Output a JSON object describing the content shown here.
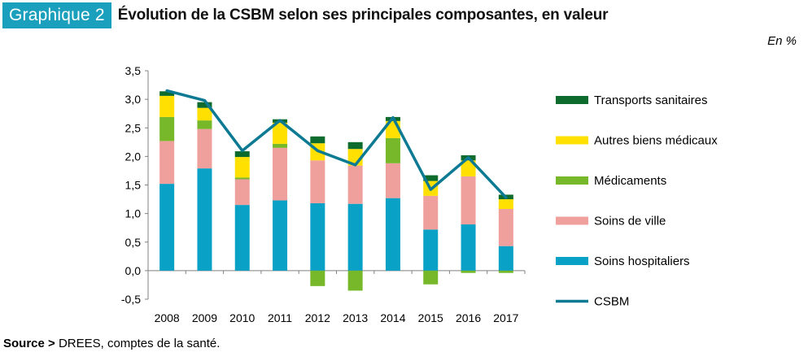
{
  "header": {
    "badge": "Graphique 2",
    "title": "Évolution de la CSBM selon ses principales composantes, en valeur",
    "unit": "En %"
  },
  "footer": {
    "source_label": "Source >",
    "source_text": " DREES, comptes de la santé."
  },
  "colors": {
    "transports": "#0e6b2e",
    "autres": "#ffe000",
    "medicaments": "#76b82a",
    "soins_ville": "#f0a09c",
    "soins_hosp": "#0aa1c6",
    "csbm": "#0c7a93",
    "axis": "#808080"
  },
  "chart_data": {
    "type": "bar",
    "stacked": true,
    "categories": [
      "2008",
      "2009",
      "2010",
      "2011",
      "2012",
      "2013",
      "2014",
      "2015",
      "2016",
      "2017"
    ],
    "ylim": [
      -0.5,
      3.5
    ],
    "yticks": [
      "3,5",
      "3,0",
      "2,5",
      "2,0",
      "1,5",
      "1,0",
      "0,5",
      "0,0",
      "-0,5"
    ],
    "ytick_values": [
      3.5,
      3.0,
      2.5,
      2.0,
      1.5,
      1.0,
      0.5,
      0.0,
      -0.5
    ],
    "series": [
      {
        "name": "Soins hospitaliers",
        "key": "soins_hosp",
        "values": [
          1.52,
          1.79,
          1.15,
          1.23,
          1.18,
          1.17,
          1.27,
          0.72,
          0.81,
          0.43
        ]
      },
      {
        "name": "Soins de ville",
        "key": "soins_ville",
        "values": [
          0.75,
          0.69,
          0.45,
          0.92,
          0.75,
          0.67,
          0.61,
          0.59,
          0.84,
          0.65
        ]
      },
      {
        "name": "Médicaments",
        "key": "medicaments",
        "values": [
          0.42,
          0.15,
          0.03,
          0.07,
          -0.27,
          -0.35,
          0.44,
          -0.24,
          -0.04,
          -0.04
        ]
      },
      {
        "name": "Autres biens médicaux",
        "key": "autres",
        "values": [
          0.37,
          0.22,
          0.36,
          0.37,
          0.3,
          0.29,
          0.3,
          0.26,
          0.28,
          0.17
        ]
      },
      {
        "name": "Transports sanitaires",
        "key": "transports",
        "values": [
          0.08,
          0.1,
          0.1,
          0.06,
          0.12,
          0.12,
          0.07,
          0.1,
          0.09,
          0.08
        ]
      }
    ],
    "line": {
      "name": "CSBM",
      "key": "csbm",
      "values": [
        3.15,
        2.98,
        2.1,
        2.63,
        2.1,
        1.85,
        2.68,
        1.42,
        1.98,
        1.28
      ]
    },
    "legend": [
      {
        "label": "Transports sanitaires",
        "key": "transports",
        "kind": "box"
      },
      {
        "label": "Autres biens médicaux",
        "key": "autres",
        "kind": "box"
      },
      {
        "label": "Médicaments",
        "key": "medicaments",
        "kind": "box"
      },
      {
        "label": "Soins de ville",
        "key": "soins_ville",
        "kind": "box"
      },
      {
        "label": "Soins hospitaliers",
        "key": "soins_hosp",
        "kind": "box"
      },
      {
        "label": "CSBM",
        "key": "csbm",
        "kind": "line"
      }
    ]
  }
}
